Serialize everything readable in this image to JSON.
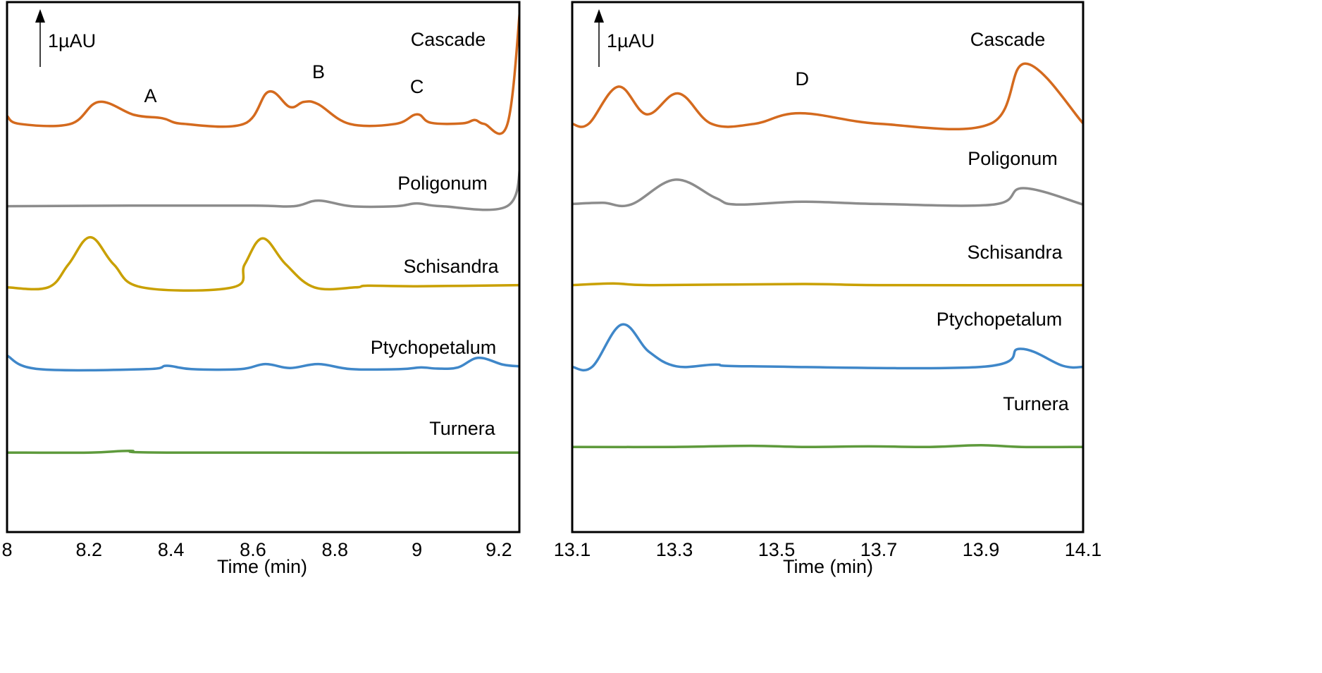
{
  "chart_data": [
    {
      "type": "line",
      "title": "",
      "xlabel": "Time (min)",
      "ylabel": "",
      "xlim": [
        8,
        9.25
      ],
      "ylim": [
        0,
        9.4
      ],
      "xticks": [
        "8",
        "8.2",
        "8.4",
        "8.6",
        "8.8",
        "9",
        "9.2"
      ],
      "xtick_values": [
        8,
        8.2,
        8.4,
        8.6,
        8.8,
        9,
        9.2
      ],
      "scale_bar": "1µAU",
      "peak_labels": [
        {
          "text": "A",
          "x": 8.35
        },
        {
          "text": "B",
          "x": 8.76
        },
        {
          "text": "C",
          "x": 9.0
        }
      ],
      "series": [
        {
          "name": "Cascade",
          "color": "#D46A1E",
          "points": [
            [
              8.0,
              7.38
            ],
            [
              8.031,
              7.24
            ],
            [
              8.155,
              7.24
            ],
            [
              8.224,
              7.63
            ],
            [
              8.31,
              7.4
            ],
            [
              8.379,
              7.34
            ],
            [
              8.431,
              7.24
            ],
            [
              8.578,
              7.24
            ],
            [
              8.638,
              7.81
            ],
            [
              8.69,
              7.54
            ],
            [
              8.724,
              7.63
            ],
            [
              8.759,
              7.59
            ],
            [
              8.836,
              7.24
            ],
            [
              8.948,
              7.24
            ],
            [
              9.0,
              7.41
            ],
            [
              9.034,
              7.26
            ],
            [
              9.112,
              7.25
            ],
            [
              9.141,
              7.31
            ],
            [
              9.164,
              7.24
            ],
            [
              9.221,
              7.24
            ],
            [
              9.253,
              9.4
            ]
          ]
        },
        {
          "name": "Poligonum",
          "color": "#8C8C8C",
          "points": [
            [
              8.0,
              5.78
            ],
            [
              8.3,
              5.79
            ],
            [
              8.6,
              5.79
            ],
            [
              8.7,
              5.78
            ],
            [
              8.76,
              5.88
            ],
            [
              8.84,
              5.78
            ],
            [
              8.95,
              5.78
            ],
            [
              9.0,
              5.83
            ],
            [
              9.06,
              5.78
            ],
            [
              9.22,
              5.78
            ],
            [
              9.253,
              6.56
            ]
          ]
        },
        {
          "name": "Schisandra",
          "color": "#C9A000",
          "points": [
            [
              8.0,
              4.34
            ],
            [
              8.1,
              4.34
            ],
            [
              8.15,
              4.75
            ],
            [
              8.203,
              5.23
            ],
            [
              8.26,
              4.75
            ],
            [
              8.33,
              4.34
            ],
            [
              8.55,
              4.34
            ],
            [
              8.58,
              4.75
            ],
            [
              8.624,
              5.21
            ],
            [
              8.68,
              4.75
            ],
            [
              8.75,
              4.34
            ],
            [
              8.85,
              4.34
            ],
            [
              8.88,
              4.37
            ],
            [
              9.0,
              4.36
            ],
            [
              9.25,
              4.38
            ]
          ]
        },
        {
          "name": "Ptychopetalum",
          "color": "#3F87C9",
          "points": [
            [
              8.0,
              3.13
            ],
            [
              8.078,
              2.89
            ],
            [
              8.34,
              2.89
            ],
            [
              8.39,
              2.95
            ],
            [
              8.45,
              2.89
            ],
            [
              8.57,
              2.89
            ],
            [
              8.63,
              2.98
            ],
            [
              8.69,
              2.91
            ],
            [
              8.76,
              2.98
            ],
            [
              8.84,
              2.89
            ],
            [
              8.96,
              2.89
            ],
            [
              9.01,
              2.92
            ],
            [
              9.05,
              2.9
            ],
            [
              9.1,
              2.92
            ],
            [
              9.15,
              3.09
            ],
            [
              9.21,
              2.97
            ],
            [
              9.25,
              2.94
            ]
          ]
        },
        {
          "name": "Turnera",
          "color": "#5E9A3C",
          "points": [
            [
              8.0,
              1.41
            ],
            [
              8.2,
              1.41
            ],
            [
              8.3,
              1.44
            ],
            [
              8.4,
              1.41
            ],
            [
              9.25,
              1.41
            ]
          ]
        }
      ]
    },
    {
      "type": "line",
      "title": "",
      "xlabel": "Time (min)",
      "ylabel": "",
      "xlim": [
        13.1,
        14.1
      ],
      "ylim": [
        0,
        9.4
      ],
      "xticks": [
        "13.1",
        "13.3",
        "13.5",
        "13.7",
        "13.9",
        "14.1"
      ],
      "xtick_values": [
        13.1,
        13.3,
        13.5,
        13.7,
        13.9,
        14.1
      ],
      "scale_bar": "1µAU",
      "peak_labels": [
        {
          "text": "D",
          "x": 13.55
        }
      ],
      "series": [
        {
          "name": "Cascade",
          "color": "#D46A1E",
          "points": [
            [
              13.1,
              7.24
            ],
            [
              13.132,
              7.24
            ],
            [
              13.19,
              7.9
            ],
            [
              13.246,
              7.41
            ],
            [
              13.308,
              7.78
            ],
            [
              13.373,
              7.24
            ],
            [
              13.456,
              7.24
            ],
            [
              13.546,
              7.43
            ],
            [
              13.704,
              7.24
            ],
            [
              13.918,
              7.24
            ],
            [
              13.987,
              8.31
            ],
            [
              14.1,
              7.25
            ]
          ]
        },
        {
          "name": "Poligonum",
          "color": "#8C8C8C",
          "points": [
            [
              13.1,
              5.82
            ],
            [
              13.16,
              5.84
            ],
            [
              13.215,
              5.81
            ],
            [
              13.301,
              6.25
            ],
            [
              13.38,
              5.93
            ],
            [
              13.421,
              5.81
            ],
            [
              13.55,
              5.86
            ],
            [
              13.7,
              5.82
            ],
            [
              13.925,
              5.81
            ],
            [
              13.983,
              6.1
            ],
            [
              14.1,
              5.81
            ]
          ]
        },
        {
          "name": "Schisandra",
          "color": "#C9A000",
          "points": [
            [
              13.1,
              4.38
            ],
            [
              13.18,
              4.41
            ],
            [
              13.26,
              4.38
            ],
            [
              13.55,
              4.4
            ],
            [
              13.7,
              4.38
            ],
            [
              14.1,
              4.38
            ]
          ]
        },
        {
          "name": "Ptychopetalum",
          "color": "#3F87C9",
          "points": [
            [
              13.1,
              2.93
            ],
            [
              13.139,
              2.93
            ],
            [
              13.197,
              3.68
            ],
            [
              13.25,
              3.2
            ],
            [
              13.304,
              2.94
            ],
            [
              13.38,
              2.97
            ],
            [
              13.45,
              2.94
            ],
            [
              13.9,
              2.93
            ],
            [
              13.977,
              3.25
            ],
            [
              14.06,
              2.95
            ],
            [
              14.1,
              2.93
            ]
          ]
        },
        {
          "name": "Turnera",
          "color": "#5E9A3C",
          "points": [
            [
              13.1,
              1.51
            ],
            [
              13.3,
              1.51
            ],
            [
              13.45,
              1.53
            ],
            [
              13.55,
              1.51
            ],
            [
              13.68,
              1.52
            ],
            [
              13.8,
              1.51
            ],
            [
              13.9,
              1.54
            ],
            [
              13.98,
              1.51
            ],
            [
              14.1,
              1.51
            ]
          ]
        }
      ]
    }
  ]
}
